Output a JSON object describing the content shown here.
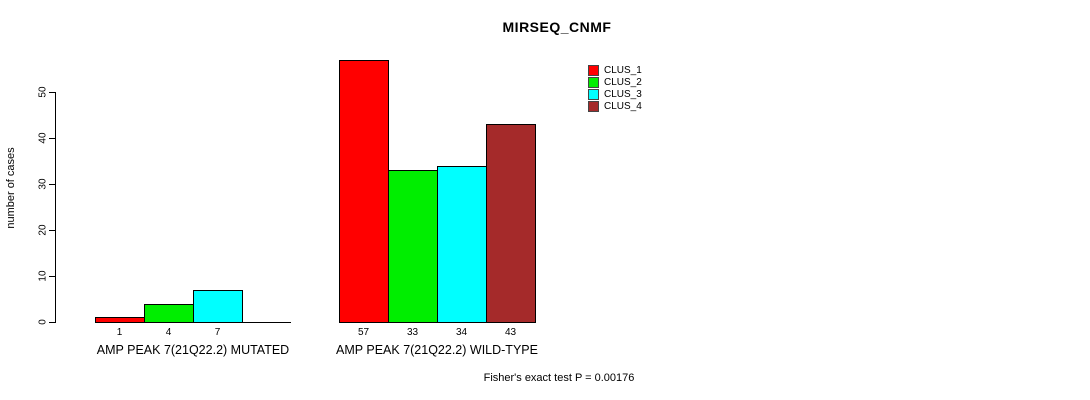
{
  "title": "MIRSEQ_CNMF",
  "footnote": "Fisher's exact test P = 0.00176",
  "chart_data": {
    "type": "bar",
    "title": "MIRSEQ_CNMF",
    "xlabel": "",
    "ylabel": "number of cases",
    "ylim": [
      0,
      57
    ],
    "yticks": [
      0,
      10,
      20,
      30,
      40,
      50
    ],
    "grid": false,
    "legend_position": "top-right",
    "series": [
      {
        "name": "CLUS_1",
        "color": "#FF0000"
      },
      {
        "name": "CLUS_2",
        "color": "#00EE00"
      },
      {
        "name": "CLUS_3",
        "color": "#00FFFF"
      },
      {
        "name": "CLUS_4",
        "color": "#A52A2A"
      }
    ],
    "groups": [
      {
        "label": "AMP PEAK 7(21Q22.2) MUTATED",
        "values": [
          1,
          4,
          7,
          0
        ],
        "bar_labels": [
          "1",
          "4",
          "7",
          ""
        ]
      },
      {
        "label": "AMP PEAK 7(21Q22.2) WILD-TYPE",
        "values": [
          57,
          33,
          34,
          43
        ],
        "bar_labels": [
          "57",
          "33",
          "34",
          "43"
        ]
      }
    ],
    "annotation": "Fisher's exact test P = 0.00176"
  }
}
